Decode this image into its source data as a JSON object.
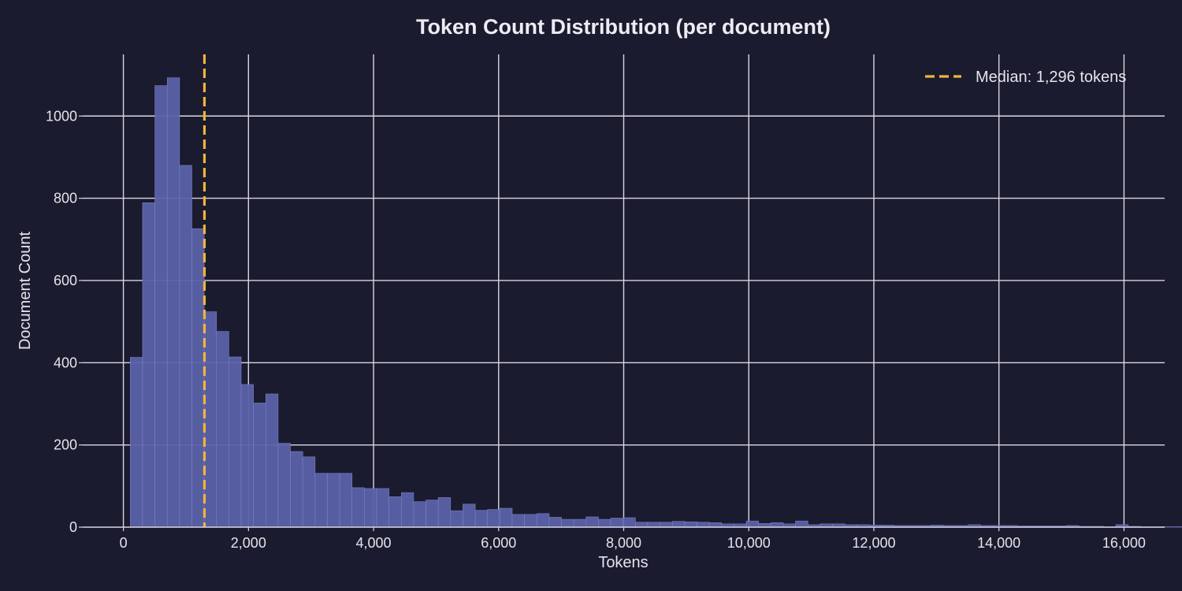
{
  "chart_data": {
    "type": "bar",
    "title": "Token Count Distribution (per document)",
    "xlabel": "Tokens",
    "ylabel": "Document Count",
    "xlim": [
      -650,
      16650
    ],
    "ylim": [
      0,
      1150
    ],
    "x_ticks": [
      0,
      2000,
      4000,
      6000,
      8000,
      10000,
      12000,
      14000,
      16000
    ],
    "x_tick_labels": [
      "0",
      "2,000",
      "4,000",
      "6,000",
      "8,000",
      "10,000",
      "12,000",
      "14,000",
      "16,000"
    ],
    "y_ticks": [
      0,
      200,
      400,
      600,
      800,
      1000
    ],
    "y_tick_labels": [
      "0",
      "200",
      "400",
      "600",
      "800",
      "1000"
    ],
    "grid": true,
    "bin_width": 197,
    "bin_start": 110,
    "values": [
      413,
      789,
      1074,
      1093,
      880,
      726,
      524,
      476,
      414,
      347,
      302,
      324,
      204,
      184,
      171,
      131,
      131,
      131,
      96,
      94,
      94,
      74,
      84,
      62,
      66,
      72,
      40,
      56,
      41,
      43,
      46,
      31,
      31,
      33,
      24,
      19,
      19,
      25,
      19,
      22,
      23,
      12,
      12,
      12,
      14,
      13,
      12,
      11,
      8,
      8,
      15,
      9,
      11,
      8,
      15,
      6,
      8,
      8,
      6,
      6,
      5,
      5,
      4,
      4,
      4,
      5,
      4,
      4,
      6,
      4,
      4,
      4,
      3,
      3,
      3,
      3,
      4,
      2,
      2,
      1,
      6,
      2,
      1,
      1,
      1,
      1,
      1
    ],
    "median": 1296,
    "legend": {
      "label": "Median: 1,296 tokens",
      "position": "top-right"
    },
    "colors": {
      "background": "#1b1b2f",
      "bar": "#5b61a8",
      "bar_edge": "#7a80c4",
      "median_line": "#f0b53a",
      "grid": "#d8d8e2",
      "text": "#e4e4ec"
    }
  }
}
